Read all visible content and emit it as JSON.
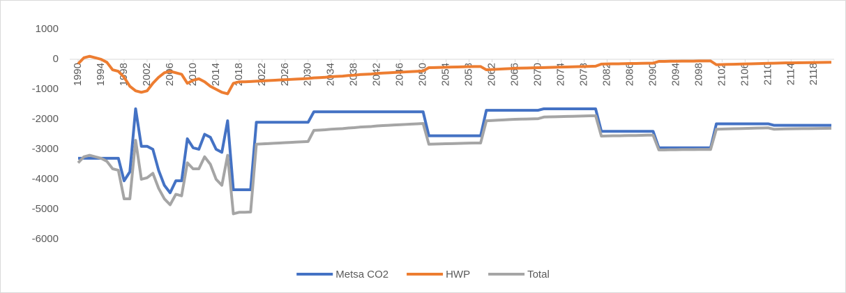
{
  "chart_data": {
    "type": "line",
    "x": [
      1990,
      1991,
      1992,
      1993,
      1994,
      1995,
      1996,
      1997,
      1998,
      1999,
      2000,
      2001,
      2002,
      2003,
      2004,
      2005,
      2006,
      2007,
      2008,
      2009,
      2010,
      2011,
      2012,
      2013,
      2014,
      2015,
      2016,
      2017,
      2018,
      2019,
      2020,
      2021,
      2022,
      2023,
      2024,
      2025,
      2026,
      2027,
      2028,
      2029,
      2030,
      2031,
      2032,
      2033,
      2034,
      2035,
      2036,
      2037,
      2038,
      2039,
      2040,
      2041,
      2042,
      2043,
      2044,
      2045,
      2046,
      2047,
      2048,
      2049,
      2050,
      2051,
      2052,
      2053,
      2054,
      2055,
      2056,
      2057,
      2058,
      2059,
      2060,
      2061,
      2062,
      2063,
      2064,
      2065,
      2066,
      2067,
      2068,
      2069,
      2070,
      2071,
      2072,
      2073,
      2074,
      2075,
      2076,
      2077,
      2078,
      2079,
      2080,
      2081,
      2082,
      2083,
      2084,
      2085,
      2086,
      2087,
      2088,
      2089,
      2090,
      2091,
      2092,
      2093,
      2094,
      2095,
      2096,
      2097,
      2098,
      2099,
      2100,
      2101,
      2102,
      2103,
      2104,
      2105,
      2106,
      2107,
      2108,
      2109,
      2110,
      2111,
      2112,
      2113,
      2114,
      2115,
      2116,
      2117,
      2118,
      2119,
      2120,
      2121
    ],
    "series": [
      {
        "name": "Metsa CO2",
        "color": "#4472c4",
        "values": [
          -3300,
          -3300,
          -3300,
          -3300,
          -3300,
          -3300,
          -3300,
          -3300,
          -4050,
          -3750,
          -1650,
          -2900,
          -2900,
          -3000,
          -3700,
          -4200,
          -4450,
          -4050,
          -4050,
          -2650,
          -2950,
          -3000,
          -2500,
          -2600,
          -3000,
          -3100,
          -2050,
          -4350,
          -4350,
          -4350,
          -4350,
          -2100,
          -2100,
          -2100,
          -2100,
          -2100,
          -2100,
          -2100,
          -2100,
          -2100,
          -2100,
          -1750,
          -1750,
          -1750,
          -1750,
          -1750,
          -1750,
          -1750,
          -1750,
          -1750,
          -1750,
          -1750,
          -1750,
          -1750,
          -1750,
          -1750,
          -1750,
          -1750,
          -1750,
          -1750,
          -1750,
          -2550,
          -2550,
          -2550,
          -2550,
          -2550,
          -2550,
          -2550,
          -2550,
          -2550,
          -2550,
          -1700,
          -1700,
          -1700,
          -1700,
          -1700,
          -1700,
          -1700,
          -1700,
          -1700,
          -1700,
          -1650,
          -1650,
          -1650,
          -1650,
          -1650,
          -1650,
          -1650,
          -1650,
          -1650,
          -1650,
          -2400,
          -2400,
          -2400,
          -2400,
          -2400,
          -2400,
          -2400,
          -2400,
          -2400,
          -2400,
          -2950,
          -2950,
          -2950,
          -2950,
          -2950,
          -2950,
          -2950,
          -2950,
          -2950,
          -2950,
          -2150,
          -2150,
          -2150,
          -2150,
          -2150,
          -2150,
          -2150,
          -2150,
          -2150,
          -2150,
          -2200,
          -2200,
          -2200,
          -2200,
          -2200,
          -2200,
          -2200,
          -2200,
          -2200,
          -2200,
          -2200
        ]
      },
      {
        "name": "HWP",
        "color": "#ed7d31",
        "values": [
          -150,
          50,
          100,
          50,
          0,
          -100,
          -350,
          -400,
          -600,
          -900,
          -1050,
          -1100,
          -1050,
          -800,
          -600,
          -450,
          -400,
          -450,
          -500,
          -800,
          -700,
          -650,
          -750,
          -900,
          -1000,
          -1100,
          -1150,
          -800,
          -750,
          -750,
          -740,
          -730,
          -720,
          -710,
          -700,
          -690,
          -680,
          -670,
          -660,
          -650,
          -640,
          -620,
          -610,
          -600,
          -580,
          -570,
          -560,
          -540,
          -530,
          -510,
          -500,
          -490,
          -470,
          -460,
          -450,
          -440,
          -430,
          -420,
          -410,
          -400,
          -390,
          -280,
          -275,
          -270,
          -265,
          -260,
          -255,
          -250,
          -245,
          -240,
          -240,
          -350,
          -340,
          -330,
          -320,
          -310,
          -300,
          -295,
          -290,
          -285,
          -280,
          -275,
          -270,
          -265,
          -260,
          -255,
          -250,
          -245,
          -240,
          -235,
          -230,
          -160,
          -155,
          -150,
          -150,
          -145,
          -140,
          -140,
          -135,
          -130,
          -130,
          -70,
          -70,
          -65,
          -65,
          -60,
          -60,
          -60,
          -55,
          -55,
          -55,
          -180,
          -175,
          -170,
          -165,
          -160,
          -155,
          -150,
          -145,
          -140,
          -135,
          -130,
          -125,
          -120,
          -118,
          -115,
          -112,
          -110,
          -108,
          -105,
          -102,
          -100
        ]
      },
      {
        "name": "Total",
        "color": "#a5a5a5",
        "values": [
          -3450,
          -3250,
          -3200,
          -3250,
          -3300,
          -3400,
          -3650,
          -3700,
          -4650,
          -4650,
          -2700,
          -4000,
          -3950,
          -3800,
          -4300,
          -4650,
          -4850,
          -4500,
          -4550,
          -3450,
          -3650,
          -3650,
          -3250,
          -3500,
          -4000,
          -4200,
          -3200,
          -5150,
          -5100,
          -5100,
          -5090,
          -2830,
          -2820,
          -2810,
          -2800,
          -2790,
          -2780,
          -2770,
          -2760,
          -2750,
          -2740,
          -2370,
          -2360,
          -2350,
          -2330,
          -2320,
          -2310,
          -2290,
          -2280,
          -2260,
          -2250,
          -2240,
          -2220,
          -2210,
          -2200,
          -2190,
          -2180,
          -2170,
          -2160,
          -2150,
          -2140,
          -2830,
          -2825,
          -2820,
          -2815,
          -2810,
          -2805,
          -2800,
          -2795,
          -2790,
          -2790,
          -2050,
          -2040,
          -2030,
          -2020,
          -2010,
          -2000,
          -1995,
          -1990,
          -1985,
          -1980,
          -1925,
          -1920,
          -1915,
          -1910,
          -1905,
          -1900,
          -1895,
          -1890,
          -1885,
          -1880,
          -2560,
          -2555,
          -2550,
          -2550,
          -2545,
          -2540,
          -2540,
          -2535,
          -2530,
          -2530,
          -3020,
          -3020,
          -3015,
          -3015,
          -3010,
          -3010,
          -3010,
          -3005,
          -3005,
          -3005,
          -2330,
          -2325,
          -2320,
          -2315,
          -2310,
          -2305,
          -2300,
          -2295,
          -2290,
          -2285,
          -2330,
          -2325,
          -2320,
          -2318,
          -2315,
          -2312,
          -2310,
          -2308,
          -2305,
          -2302,
          -2300
        ]
      }
    ],
    "xlim": [
      1990,
      2121
    ],
    "xticks": [
      1990,
      1994,
      1998,
      2002,
      2006,
      2010,
      2014,
      2018,
      2022,
      2026,
      2030,
      2034,
      2038,
      2042,
      2046,
      2050,
      2054,
      2058,
      2062,
      2066,
      2070,
      2074,
      2078,
      2082,
      2086,
      2090,
      2094,
      2098,
      2102,
      2106,
      2110,
      2114,
      2118
    ],
    "ylim": [
      -6000,
      1000
    ],
    "yticks": [
      -6000,
      -5000,
      -4000,
      -3000,
      -2000,
      -1000,
      0,
      1000
    ],
    "legend": "bottom"
  }
}
